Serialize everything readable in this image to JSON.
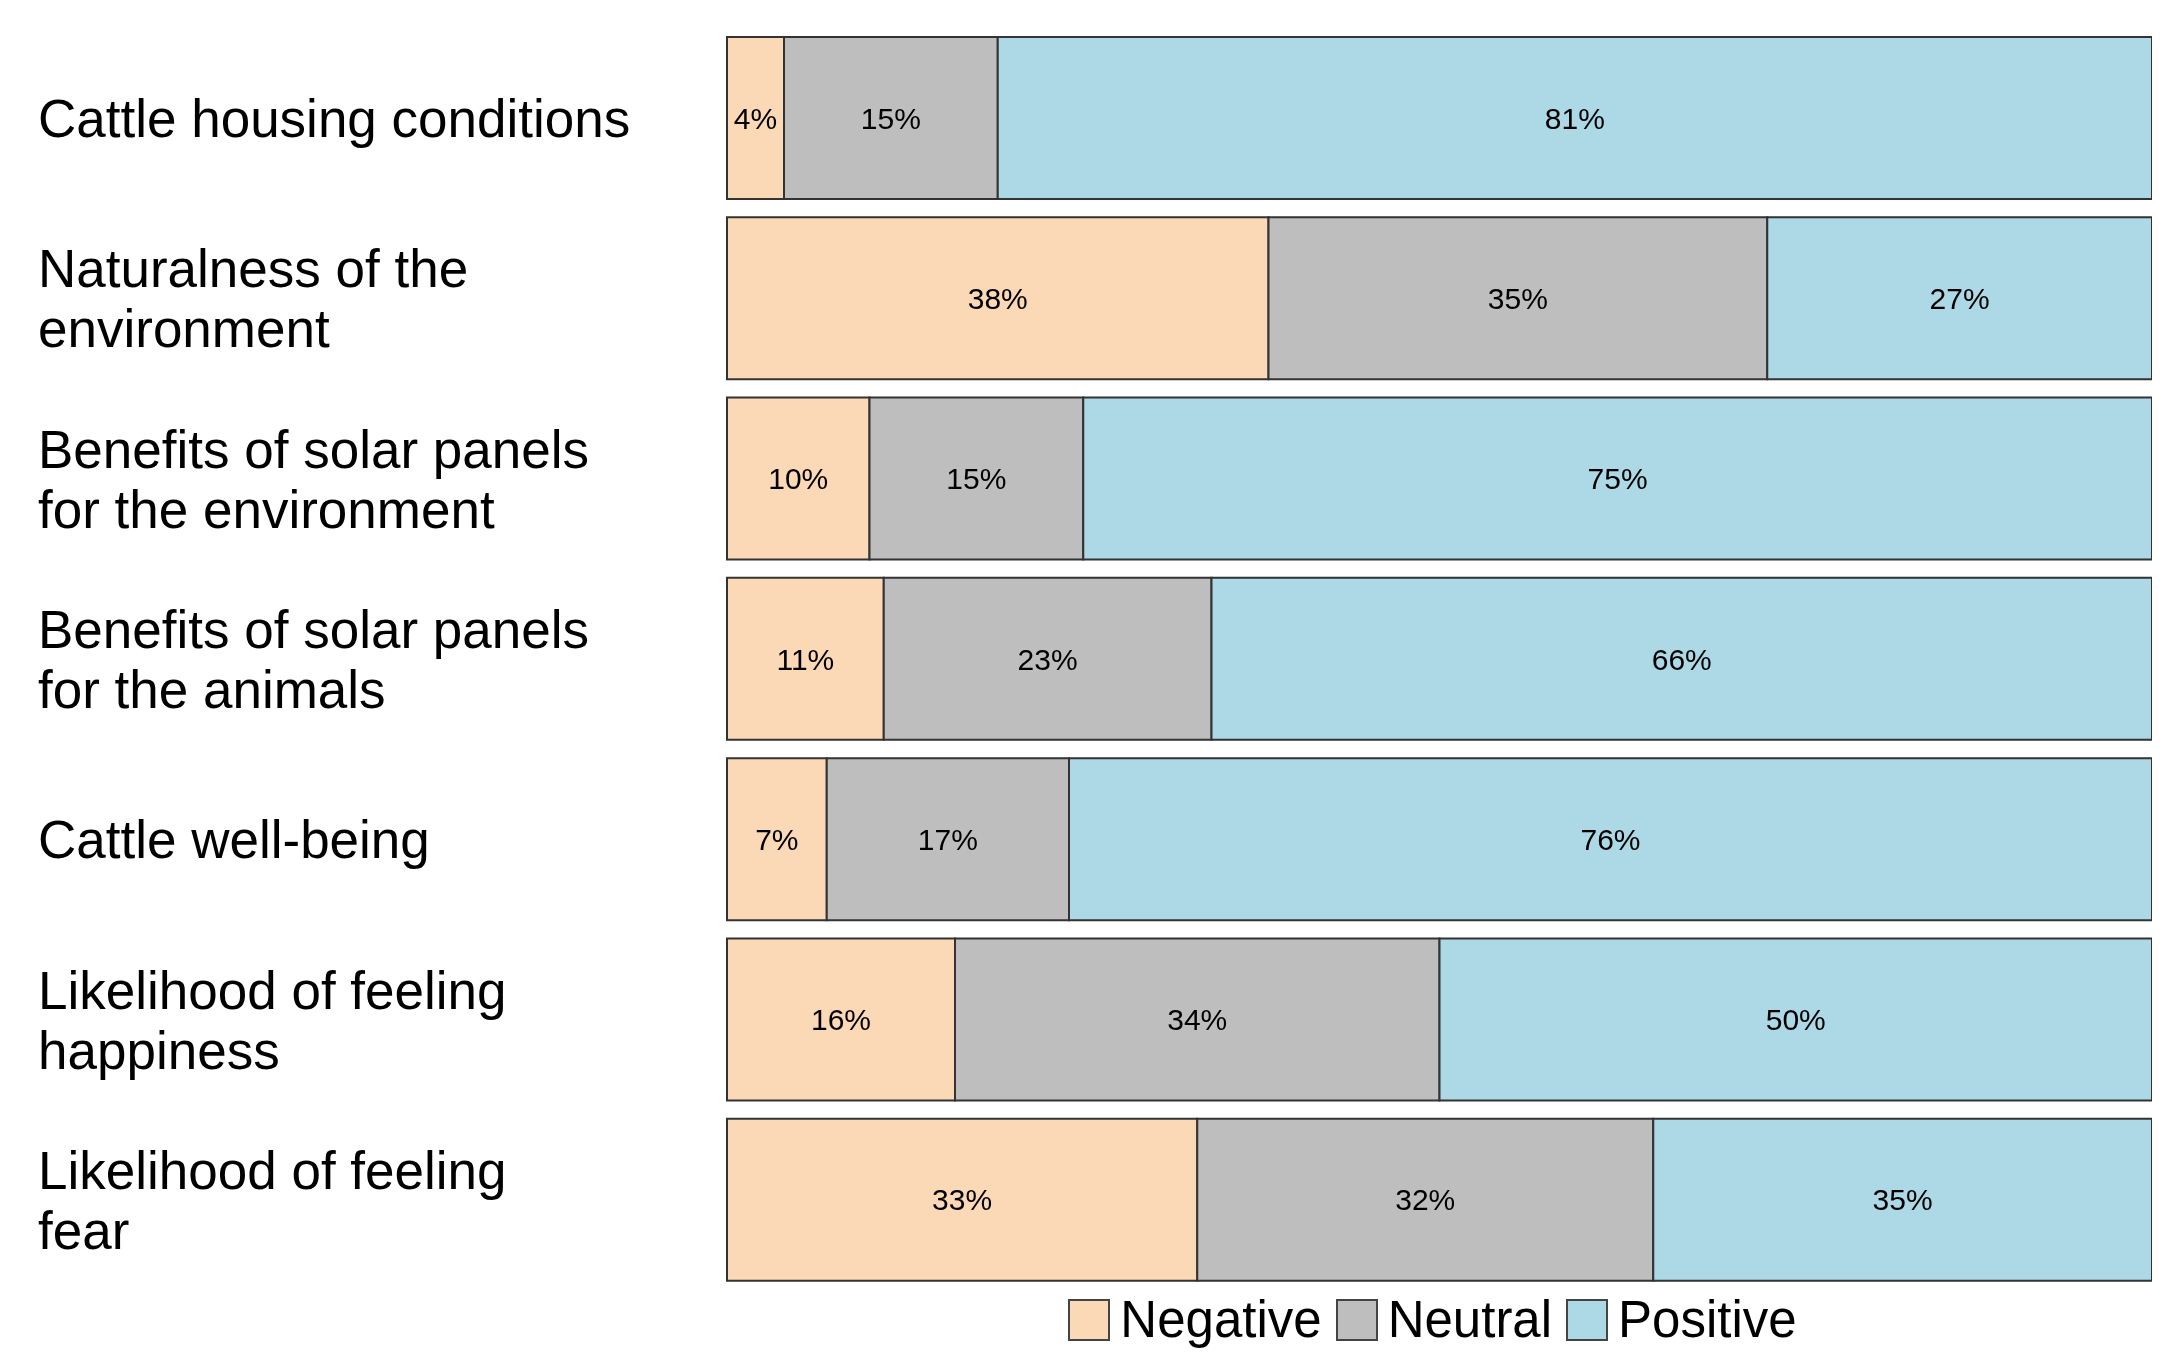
{
  "chart_data": {
    "type": "bar",
    "orientation": "horizontal",
    "stacked": true,
    "legend": "bottom",
    "grid": false,
    "categories": [
      "Cattle housing conditions",
      "Naturalness of the environment",
      "Benefits of solar panels for the environment",
      "Benefits of solar panels for the animals",
      "Cattle well-being",
      "Likelihood of feeling happiness",
      "Likelihood of feeling fear"
    ],
    "series": [
      {
        "name": "Negative",
        "color": "#fcd9b6",
        "values": [
          4,
          38,
          10,
          11,
          7,
          16,
          33
        ],
        "value_labels": [
          "4%",
          "38%",
          "10%",
          "11%",
          "7%",
          "16%",
          "33%"
        ]
      },
      {
        "name": "Neutral",
        "color": "#bebebe",
        "values": [
          15,
          35,
          15,
          23,
          17,
          34,
          32
        ],
        "value_labels": [
          "15%",
          "35%",
          "15%",
          "23%",
          "17%",
          "34%",
          "32%"
        ]
      },
      {
        "name": "Positive",
        "color": "#add8e6",
        "values": [
          81,
          27,
          75,
          66,
          76,
          50,
          35
        ],
        "value_labels": [
          "81%",
          "27%",
          "75%",
          "66%",
          "76%",
          "50%",
          "35%"
        ]
      }
    ]
  }
}
